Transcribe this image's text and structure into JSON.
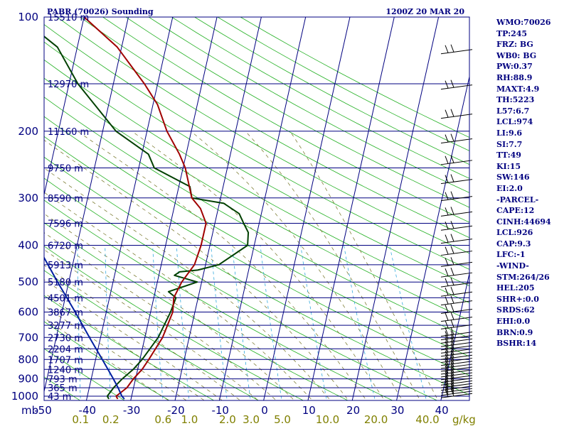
{
  "title_left": "PABR (70026) Sounding",
  "title_right": "1200Z 20 MAR 20",
  "chart_data": {
    "type": "line",
    "subtype": "skew-T log-P sounding",
    "title": "PABR (70026) Sounding",
    "valid_time": "1200Z 20 MAR 20",
    "yscale": "log (pressure, reversed)",
    "xlim": [
      -50,
      45
    ],
    "ylim": [
      1050,
      100
    ],
    "x_ticks": [
      "-50",
      "-40",
      "-30",
      "-20",
      "-10",
      "0",
      "10",
      "20",
      "30",
      "40"
    ],
    "x_unit": "C",
    "y_ticks": [
      {
        "p": 100,
        "label": "100"
      },
      {
        "p": 200,
        "label": "200"
      },
      {
        "p": 300,
        "label": "300"
      },
      {
        "p": 400,
        "label": "400"
      },
      {
        "p": 500,
        "label": "500"
      },
      {
        "p": 600,
        "label": "600"
      },
      {
        "p": 700,
        "label": "700"
      },
      {
        "p": 800,
        "label": "800"
      },
      {
        "p": 900,
        "label": "900"
      },
      {
        "p": 1000,
        "label": "1000"
      }
    ],
    "y_unit": "mb",
    "mixing_ratio_ticks": [
      "0.1",
      "0.2",
      "0.6",
      "1.0",
      "2.0",
      "3.0",
      "5.0",
      "10.0",
      "20.0",
      "40.0"
    ],
    "mixing_ratio_unit": "g/kg",
    "height_labels": [
      {
        "p": 100,
        "label": "15510 m"
      },
      {
        "p": 150,
        "label": "12970 m"
      },
      {
        "p": 200,
        "label": "11160 m"
      },
      {
        "p": 250,
        "label": "9750 m"
      },
      {
        "p": 300,
        "label": "8590 m"
      },
      {
        "p": 350,
        "label": "7596 m"
      },
      {
        "p": 400,
        "label": "6720 m"
      },
      {
        "p": 450,
        "label": "5913 m"
      },
      {
        "p": 500,
        "label": "5180 m"
      },
      {
        "p": 550,
        "label": "4501 m"
      },
      {
        "p": 600,
        "label": "3867 m"
      },
      {
        "p": 650,
        "label": "3277 m"
      },
      {
        "p": 700,
        "label": "2730 m"
      },
      {
        "p": 750,
        "label": "2204 m"
      },
      {
        "p": 800,
        "label": "1707 m"
      },
      {
        "p": 850,
        "label": "1240 m"
      },
      {
        "p": 900,
        "label": "793 m"
      },
      {
        "p": 950,
        "label": "365 m"
      },
      {
        "p": 1000,
        "label": "43 m"
      }
    ],
    "series": [
      {
        "color": "#004000",
        "points": [
          [
            1017,
            -35.0
          ],
          [
            1000,
            -35.5
          ],
          [
            950,
            -34.5
          ],
          [
            900,
            -33.0
          ],
          [
            850,
            -31.0
          ],
          [
            800,
            -29.5
          ],
          [
            700,
            -27.0
          ],
          [
            600,
            -25.5
          ],
          [
            550,
            -25.0
          ],
          [
            530,
            -27.0
          ],
          [
            500,
            -21.0
          ],
          [
            480,
            -26.5
          ],
          [
            470,
            -25.5
          ],
          [
            465,
            -21.5
          ],
          [
            450,
            -17.0
          ],
          [
            400,
            -11.5
          ],
          [
            370,
            -12.0
          ],
          [
            350,
            -13.5
          ],
          [
            330,
            -15.0
          ],
          [
            310,
            -19.0
          ],
          [
            300,
            -26.5
          ],
          [
            280,
            -27.5
          ],
          [
            250,
            -36.5
          ],
          [
            230,
            -38.5
          ],
          [
            200,
            -47.0
          ],
          [
            150,
            -58.0
          ],
          [
            120,
            -64.5
          ],
          [
            100,
            -74.5
          ]
        ]
      },
      {
        "color": "#a00000",
        "points": [
          [
            1017,
            -33.0
          ],
          [
            1000,
            -33.5
          ],
          [
            950,
            -31.5
          ],
          [
            900,
            -30.5
          ],
          [
            850,
            -29.0
          ],
          [
            800,
            -28.0
          ],
          [
            700,
            -26.0
          ],
          [
            600,
            -25.0
          ],
          [
            550,
            -25.5
          ],
          [
            500,
            -24.5
          ],
          [
            450,
            -22.5
          ],
          [
            400,
            -22.0
          ],
          [
            350,
            -22.0
          ],
          [
            320,
            -24.0
          ],
          [
            300,
            -26.5
          ],
          [
            250,
            -29.5
          ],
          [
            230,
            -31.5
          ],
          [
            200,
            -35.5
          ],
          [
            170,
            -39.0
          ],
          [
            150,
            -43.0
          ],
          [
            120,
            -51.0
          ],
          [
            100,
            -60.0
          ]
        ]
      },
      {
        "color": "#0020a0",
        "points": [
          [
            1017,
            -31.5
          ],
          [
            1000,
            -32.2
          ],
          [
            950,
            -33.5
          ],
          [
            900,
            -35.0
          ],
          [
            850,
            -36.7
          ],
          [
            800,
            -38.5
          ],
          [
            700,
            -42.5
          ],
          [
            600,
            -47.0
          ],
          [
            500,
            -52.5
          ],
          [
            400,
            -59.0
          ],
          [
            300,
            -68.0
          ],
          [
            250,
            -73.5
          ],
          [
            200,
            -80.0
          ],
          [
            150,
            -88.0
          ],
          [
            120,
            -95.0
          ]
        ]
      }
    ],
    "wind_barbs": true
  },
  "indices": [
    "WMO:70026",
    "TP:245",
    "FRZ: BG",
    "WB0: BG",
    "PW:0.37",
    "RH:88.9",
    "MAXT:4.9",
    "TH:5223",
    "L57:6.7",
    "LCL:974",
    "LI:9.6",
    "SI:7.7",
    "TT:49",
    "KI:15",
    "SW:146",
    "EI:2.0",
    "-PARCEL-",
    "CAPE:12",
    "CINH:44694",
    "LCL:926",
    "CAP:9.3",
    "LFC:-1",
    "-WIND-",
    "STM:264/26",
    "HEL:205",
    "SHR+:0.0",
    "SRDS:62",
    "EHI:0.0",
    "BRN:0.9",
    "BSHR:14"
  ]
}
